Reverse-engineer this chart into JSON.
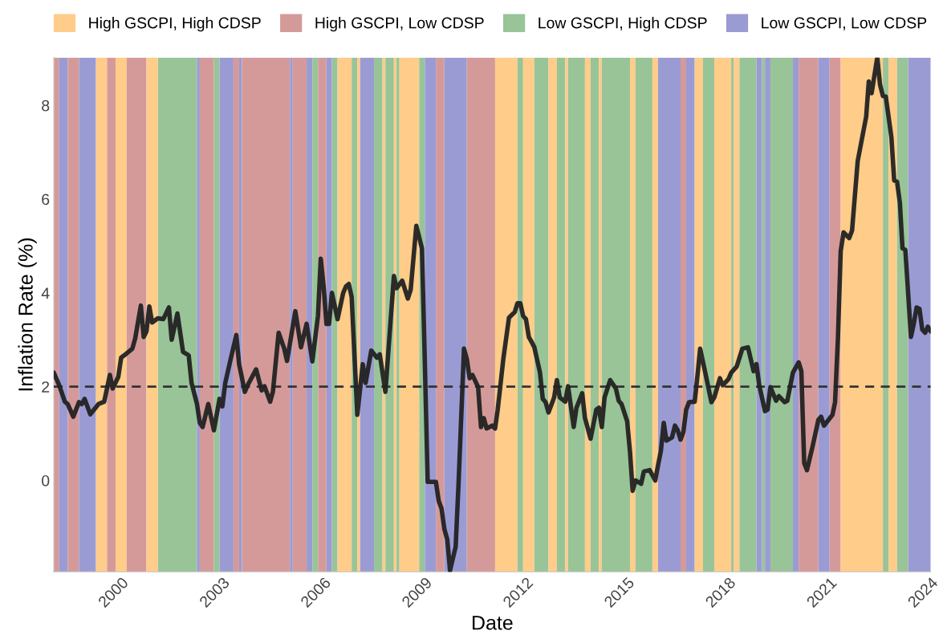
{
  "chart_data": {
    "type": "line",
    "xlabel": "Date",
    "ylabel": "Inflation Rate (%)",
    "legend": "top",
    "grid": false,
    "line_style": "solid",
    "marker": "none",
    "xlim": [
      "1998-01",
      "2024-01"
    ],
    "xticks": [
      {
        "value": "2000-01",
        "label": "2000"
      },
      {
        "value": "2003-01",
        "label": "2003"
      },
      {
        "value": "2006-01",
        "label": "2006"
      },
      {
        "value": "2009-01",
        "label": "2009"
      },
      {
        "value": "2012-01",
        "label": "2012"
      },
      {
        "value": "2015-01",
        "label": "2015"
      },
      {
        "value": "2018-01",
        "label": "2018"
      },
      {
        "value": "2021-01",
        "label": "2021"
      },
      {
        "value": "2024-01",
        "label": "2024"
      }
    ],
    "ylim": [
      -1.95,
      9.02
    ],
    "yticks": [
      0,
      2,
      4,
      6,
      8
    ],
    "series": [
      {
        "color": "#222222",
        "x": [
          "1998-01",
          "1998-03",
          "1998-05",
          "1998-06",
          "1998-08",
          "1998-10",
          "1998-11",
          "1998-12",
          "1999-02",
          "1999-03",
          "1999-05",
          "1999-07",
          "1999-09",
          "1999-10",
          "1999-12",
          "2000-01",
          "2000-03",
          "2000-05",
          "2000-06",
          "2000-08",
          "2000-09",
          "2000-10",
          "2000-11",
          "2000-12",
          "2001-02",
          "2001-04",
          "2001-06",
          "2001-07",
          "2001-09",
          "2001-11",
          "2002-01",
          "2002-02",
          "2002-04",
          "2002-05",
          "2002-06",
          "2002-08",
          "2002-10",
          "2002-12",
          "2003-01",
          "2003-02",
          "2003-04",
          "2003-06",
          "2003-07",
          "2003-09",
          "2003-10",
          "2004-01",
          "2004-03",
          "2004-04",
          "2004-06",
          "2004-07",
          "2004-09",
          "2004-11",
          "2004-12",
          "2005-03",
          "2005-05",
          "2005-07",
          "2005-09",
          "2005-11",
          "2005-12",
          "2006-01",
          "2006-02",
          "2006-03",
          "2006-04",
          "2006-06",
          "2006-08",
          "2006-09",
          "2006-10",
          "2006-11",
          "2007-01",
          "2007-03",
          "2007-04",
          "2007-06",
          "2007-08",
          "2007-09",
          "2007-11",
          "2008-02",
          "2008-03",
          "2008-05",
          "2008-07",
          "2008-08",
          "2008-10",
          "2008-12",
          "2009-01",
          "2009-02",
          "2009-05",
          "2009-06",
          "2009-07",
          "2009-08",
          "2009-09",
          "2009-10",
          "2009-12",
          "2010-01",
          "2010-03",
          "2010-04",
          "2010-05",
          "2010-06",
          "2010-08",
          "2010-09",
          "2010-10",
          "2010-11",
          "2011-01",
          "2011-02",
          "2011-03",
          "2011-05",
          "2011-07",
          "2011-09",
          "2011-10",
          "2011-11",
          "2011-12",
          "2012-01",
          "2012-02",
          "2012-03",
          "2012-04",
          "2012-06",
          "2012-07",
          "2012-08",
          "2012-09",
          "2012-11",
          "2012-12",
          "2013-01",
          "2013-03",
          "2013-04",
          "2013-06",
          "2013-07",
          "2013-09",
          "2013-10",
          "2013-12",
          "2014-02",
          "2014-03",
          "2014-04",
          "2014-05",
          "2014-07",
          "2014-09",
          "2014-10",
          "2014-11",
          "2015-01",
          "2015-02",
          "2015-03",
          "2015-04",
          "2015-06",
          "2015-07",
          "2015-09",
          "2015-11",
          "2015-12",
          "2016-01",
          "2016-02",
          "2016-03",
          "2016-05",
          "2016-06",
          "2016-07",
          "2016-08",
          "2016-09",
          "2016-10",
          "2016-11",
          "2017-01",
          "2017-02",
          "2017-03",
          "2017-05",
          "2017-07",
          "2017-08",
          "2017-10",
          "2017-11",
          "2018-01",
          "2018-02",
          "2018-04",
          "2018-06",
          "2018-08",
          "2018-10",
          "2018-11",
          "2018-12",
          "2019-02",
          "2019-03",
          "2019-04",
          "2019-06",
          "2019-07",
          "2019-09",
          "2019-10",
          "2019-12",
          "2020-02",
          "2020-03",
          "2020-04",
          "2020-05",
          "2020-07",
          "2020-09",
          "2020-10",
          "2020-11",
          "2021-02",
          "2021-03",
          "2021-04",
          "2021-05",
          "2021-06",
          "2021-08",
          "2021-09",
          "2021-11",
          "2022-02",
          "2022-03",
          "2022-04",
          "2022-06",
          "2022-07",
          "2022-08",
          "2022-09",
          "2022-11",
          "2022-12",
          "2023-01",
          "2023-02",
          "2023-03",
          "2023-04",
          "2023-05",
          "2023-06",
          "2023-07",
          "2023-08",
          "2023-09",
          "2023-10",
          "2023-11",
          "2023-12",
          "2024-01"
        ],
        "values": [
          2.3,
          2.03,
          1.68,
          1.63,
          1.36,
          1.67,
          1.63,
          1.74,
          1.41,
          1.48,
          1.63,
          1.68,
          2.25,
          1.96,
          2.21,
          2.62,
          2.71,
          2.81,
          3.03,
          3.73,
          3.06,
          3.18,
          3.71,
          3.37,
          3.46,
          3.44,
          3.69,
          3.0,
          3.56,
          2.74,
          2.67,
          2.08,
          1.63,
          1.23,
          1.14,
          1.63,
          1.07,
          1.74,
          1.58,
          2.08,
          2.59,
          3.1,
          2.48,
          1.89,
          2.03,
          2.37,
          1.92,
          2.01,
          1.68,
          1.89,
          3.15,
          2.81,
          2.55,
          3.61,
          2.84,
          3.34,
          2.54,
          3.51,
          4.73,
          4.14,
          3.34,
          3.34,
          4.0,
          3.44,
          4.0,
          4.14,
          4.19,
          3.91,
          1.4,
          2.48,
          2.08,
          2.77,
          2.62,
          2.69,
          1.89,
          4.36,
          4.1,
          4.26,
          3.88,
          4.07,
          5.43,
          4.95,
          2.52,
          -0.03,
          -0.03,
          -0.44,
          -0.6,
          -1.04,
          -1.26,
          -1.92,
          -1.41,
          -0.07,
          2.81,
          2.59,
          2.18,
          2.25,
          1.99,
          1.14,
          1.33,
          1.11,
          1.17,
          1.11,
          1.51,
          2.59,
          3.47,
          3.59,
          3.78,
          3.78,
          3.51,
          3.44,
          3.06,
          2.96,
          2.84,
          2.3,
          1.74,
          1.67,
          1.45,
          1.77,
          2.14,
          1.77,
          1.68,
          2.01,
          1.14,
          1.55,
          1.86,
          1.33,
          0.89,
          1.51,
          1.55,
          1.14,
          1.77,
          2.14,
          1.96,
          1.7,
          1.63,
          1.26,
          0.6,
          -0.22,
          0.0,
          -0.07,
          0.19,
          0.22,
          0.0,
          0.32,
          0.63,
          1.23,
          0.85,
          0.92,
          1.17,
          1.07,
          0.87,
          1.04,
          1.51,
          1.67,
          1.68,
          2.25,
          2.81,
          2.25,
          1.67,
          1.77,
          2.18,
          2.03,
          2.16,
          2.3,
          2.43,
          2.81,
          2.84,
          2.33,
          2.48,
          2.03,
          1.48,
          1.51,
          1.99,
          1.7,
          1.8,
          1.67,
          1.7,
          2.3,
          2.52,
          2.33,
          0.37,
          0.22,
          0.73,
          1.29,
          1.36,
          1.17,
          1.4,
          1.67,
          3.03,
          4.89,
          5.29,
          5.17,
          5.33,
          6.81,
          7.76,
          8.51,
          8.26,
          9.02,
          8.44,
          8.2,
          8.19,
          7.32,
          6.4,
          6.37,
          5.92,
          4.95,
          4.92,
          4.0,
          3.06,
          3.34,
          3.69,
          3.66,
          3.22,
          3.15,
          3.28,
          3.18
        ]
      }
    ],
    "ref_lines": [
      {
        "axis": "y",
        "value": 2,
        "color": "#333333",
        "line_style": "dashed"
      }
    ],
    "bands": [
      {
        "axis": "x",
        "from": "1999-04",
        "to": "1999-08",
        "label": "High GSCPI, High CDSP",
        "color": "#ffcc8a"
      },
      {
        "axis": "x",
        "from": "1998-01",
        "to": "1998-03",
        "label": "High GSCPI, Low CDSP",
        "color": "#d49a9a"
      },
      {
        "axis": "x",
        "from": "2001-02",
        "to": "2002-04",
        "label": "Low GSCPI, High CDSP",
        "color": "#98c498"
      },
      {
        "axis": "x",
        "from": "1998-03",
        "to": "1998-06",
        "label": "Low GSCPI, Low CDSP",
        "color": "#9b9bd4"
      },
      {
        "axis": "x",
        "from": "1998-06",
        "to": "1998-10",
        "color": "#d49a9a"
      },
      {
        "axis": "x",
        "from": "1998-10",
        "to": "1999-04",
        "color": "#9b9bd4"
      },
      {
        "axis": "x",
        "from": "1999-08",
        "to": "1999-11",
        "color": "#d49a9a"
      },
      {
        "axis": "x",
        "from": "1999-11",
        "to": "2000-03",
        "color": "#ffcc8a"
      },
      {
        "axis": "x",
        "from": "2000-03",
        "to": "2000-10",
        "color": "#d49a9a"
      },
      {
        "axis": "x",
        "from": "2000-10",
        "to": "2001-02",
        "color": "#ffcc8a"
      },
      {
        "axis": "x",
        "from": "2002-04",
        "to": "2002-05",
        "color": "#9b9bd4"
      },
      {
        "axis": "x",
        "from": "2002-05",
        "to": "2002-10",
        "color": "#d49a9a"
      },
      {
        "axis": "x",
        "from": "2002-10",
        "to": "2002-12",
        "color": "#98c498"
      },
      {
        "axis": "x",
        "from": "2002-12",
        "to": "2003-05",
        "color": "#9b9bd4"
      },
      {
        "axis": "x",
        "from": "2003-05",
        "to": "2003-07",
        "color": "#d49a9a"
      },
      {
        "axis": "x",
        "from": "2003-07",
        "to": "2003-08",
        "color": "#9b9bd4"
      },
      {
        "axis": "x",
        "from": "2003-08",
        "to": "2005-01",
        "color": "#d49a9a"
      },
      {
        "axis": "x",
        "from": "2005-01",
        "to": "2005-02",
        "color": "#9b9bd4"
      },
      {
        "axis": "x",
        "from": "2005-02",
        "to": "2005-07",
        "color": "#d49a9a"
      },
      {
        "axis": "x",
        "from": "2005-07",
        "to": "2005-09",
        "color": "#9b9bd4"
      },
      {
        "axis": "x",
        "from": "2005-09",
        "to": "2005-11",
        "color": "#98c498"
      },
      {
        "axis": "x",
        "from": "2005-11",
        "to": "2006-02",
        "color": "#d49a9a"
      },
      {
        "axis": "x",
        "from": "2006-02",
        "to": "2006-04",
        "color": "#9b9bd4"
      },
      {
        "axis": "x",
        "from": "2006-04",
        "to": "2006-06",
        "color": "#98c498"
      },
      {
        "axis": "x",
        "from": "2006-06",
        "to": "2006-11",
        "color": "#ffcc8a"
      },
      {
        "axis": "x",
        "from": "2006-11",
        "to": "2007-01",
        "color": "#98c498"
      },
      {
        "axis": "x",
        "from": "2007-01",
        "to": "2007-02",
        "color": "#ffcc8a"
      },
      {
        "axis": "x",
        "from": "2007-02",
        "to": "2007-07",
        "color": "#9b9bd4"
      },
      {
        "axis": "x",
        "from": "2007-07",
        "to": "2007-10",
        "color": "#98c498"
      },
      {
        "axis": "x",
        "from": "2007-10",
        "to": "2007-11",
        "color": "#ffcc8a"
      },
      {
        "axis": "x",
        "from": "2007-11",
        "to": "2008-02",
        "color": "#98c498"
      },
      {
        "axis": "x",
        "from": "2008-02",
        "to": "2008-03",
        "color": "#ffcc8a"
      },
      {
        "axis": "x",
        "from": "2008-03",
        "to": "2008-04",
        "color": "#98c498"
      },
      {
        "axis": "x",
        "from": "2008-04",
        "to": "2008-11",
        "color": "#ffcc8a"
      },
      {
        "axis": "x",
        "from": "2008-11",
        "to": "2009-01",
        "color": "#98c498"
      },
      {
        "axis": "x",
        "from": "2009-01",
        "to": "2009-05",
        "color": "#9b9bd4"
      },
      {
        "axis": "x",
        "from": "2009-05",
        "to": "2009-08",
        "color": "#d49a9a"
      },
      {
        "axis": "x",
        "from": "2009-08",
        "to": "2010-04",
        "color": "#9b9bd4"
      },
      {
        "axis": "x",
        "from": "2010-04",
        "to": "2011-02",
        "color": "#d49a9a"
      },
      {
        "axis": "x",
        "from": "2011-02",
        "to": "2011-10",
        "color": "#ffcc8a"
      },
      {
        "axis": "x",
        "from": "2011-10",
        "to": "2011-12",
        "color": "#98c498"
      },
      {
        "axis": "x",
        "from": "2011-12",
        "to": "2012-04",
        "color": "#ffcc8a"
      },
      {
        "axis": "x",
        "from": "2012-04",
        "to": "2012-09",
        "color": "#98c498"
      },
      {
        "axis": "x",
        "from": "2012-09",
        "to": "2012-12",
        "color": "#ffcc8a"
      },
      {
        "axis": "x",
        "from": "2012-12",
        "to": "2013-03",
        "color": "#98c498"
      },
      {
        "axis": "x",
        "from": "2013-03",
        "to": "2013-04",
        "color": "#ffcc8a"
      },
      {
        "axis": "x",
        "from": "2013-04",
        "to": "2013-10",
        "color": "#98c498"
      },
      {
        "axis": "x",
        "from": "2013-10",
        "to": "2013-12",
        "color": "#ffcc8a"
      },
      {
        "axis": "x",
        "from": "2013-12",
        "to": "2014-03",
        "color": "#98c498"
      },
      {
        "axis": "x",
        "from": "2014-03",
        "to": "2014-04",
        "color": "#ffcc8a"
      },
      {
        "axis": "x",
        "from": "2014-04",
        "to": "2015-02",
        "color": "#98c498"
      },
      {
        "axis": "x",
        "from": "2015-02",
        "to": "2015-04",
        "color": "#ffcc8a"
      },
      {
        "axis": "x",
        "from": "2015-04",
        "to": "2015-10",
        "color": "#98c498"
      },
      {
        "axis": "x",
        "from": "2015-10",
        "to": "2015-12",
        "color": "#ffcc8a"
      },
      {
        "axis": "x",
        "from": "2015-12",
        "to": "2016-08",
        "color": "#9b9bd4"
      },
      {
        "axis": "x",
        "from": "2016-08",
        "to": "2016-10",
        "color": "#d49a9a"
      },
      {
        "axis": "x",
        "from": "2016-10",
        "to": "2017-01",
        "color": "#9b9bd4"
      },
      {
        "axis": "x",
        "from": "2017-01",
        "to": "2017-04",
        "color": "#ffcc8a"
      },
      {
        "axis": "x",
        "from": "2017-04",
        "to": "2017-08",
        "color": "#98c498"
      },
      {
        "axis": "x",
        "from": "2017-08",
        "to": "2018-02",
        "color": "#ffcc8a"
      },
      {
        "axis": "x",
        "from": "2018-02",
        "to": "2018-03",
        "color": "#98c498"
      },
      {
        "axis": "x",
        "from": "2018-03",
        "to": "2018-05",
        "color": "#ffcc8a"
      },
      {
        "axis": "x",
        "from": "2018-05",
        "to": "2018-11",
        "color": "#98c498"
      },
      {
        "axis": "x",
        "from": "2018-11",
        "to": "2019-01",
        "color": "#9b9bd4"
      },
      {
        "axis": "x",
        "from": "2019-01",
        "to": "2019-02",
        "color": "#98c498"
      },
      {
        "axis": "x",
        "from": "2019-02",
        "to": "2019-04",
        "color": "#9b9bd4"
      },
      {
        "axis": "x",
        "from": "2019-04",
        "to": "2019-12",
        "color": "#98c498"
      },
      {
        "axis": "x",
        "from": "2019-12",
        "to": "2020-02",
        "color": "#9b9bd4"
      },
      {
        "axis": "x",
        "from": "2020-02",
        "to": "2020-09",
        "color": "#d49a9a"
      },
      {
        "axis": "x",
        "from": "2020-09",
        "to": "2021-01",
        "color": "#9b9bd4"
      },
      {
        "axis": "x",
        "from": "2021-01",
        "to": "2021-05",
        "color": "#d49a9a"
      },
      {
        "axis": "x",
        "from": "2021-05",
        "to": "2022-08",
        "color": "#ffcc8a"
      },
      {
        "axis": "x",
        "from": "2022-08",
        "to": "2022-10",
        "color": "#98c498"
      },
      {
        "axis": "x",
        "from": "2022-10",
        "to": "2023-01",
        "color": "#ffcc8a"
      },
      {
        "axis": "x",
        "from": "2023-01",
        "to": "2023-05",
        "color": "#98c498"
      },
      {
        "axis": "x",
        "from": "2023-05",
        "to": "2024-01",
        "color": "#9b9bd4"
      }
    ]
  }
}
